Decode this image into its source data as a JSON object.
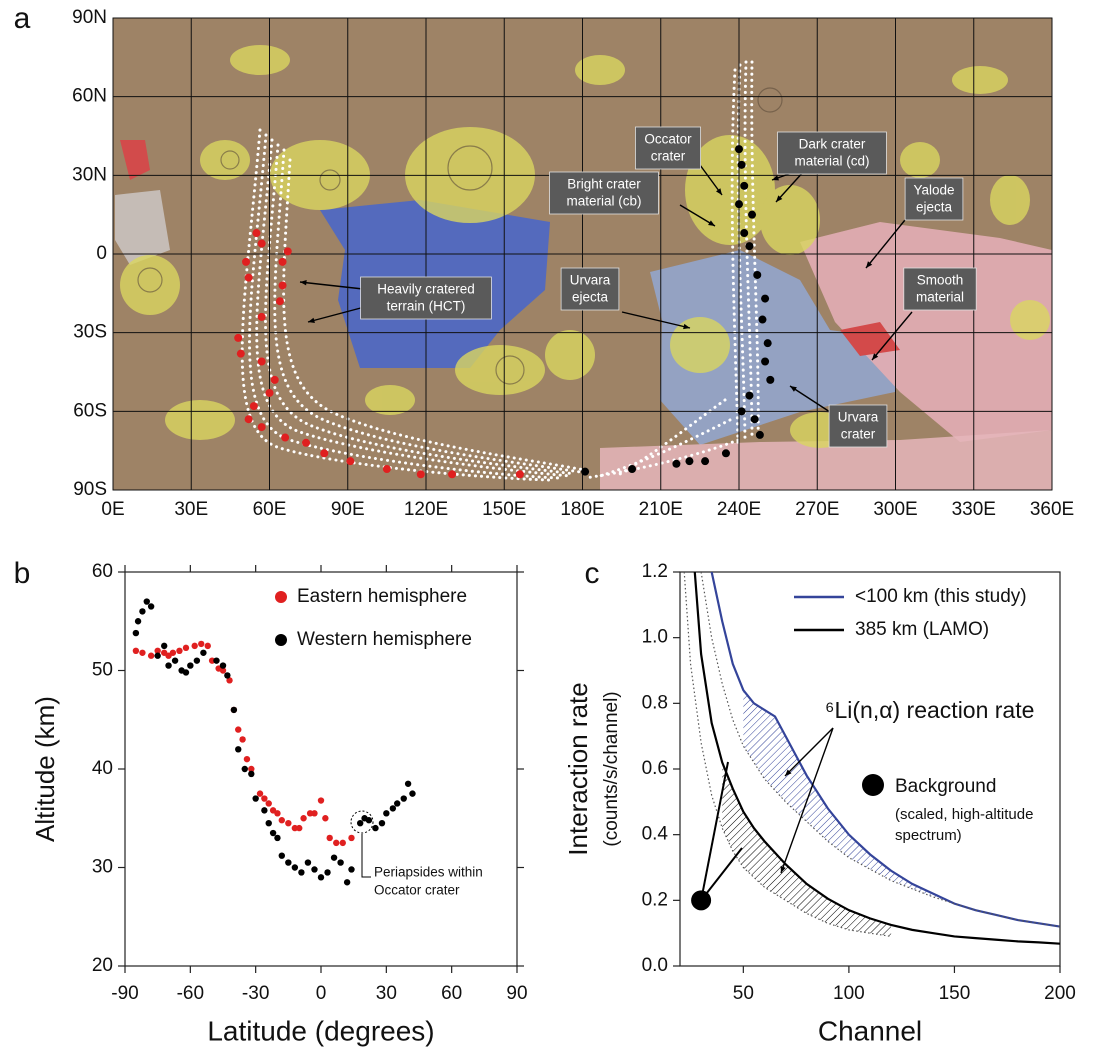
{
  "chart_data": [
    {
      "type": "scatter",
      "label": "a",
      "xlim": [
        0,
        360
      ],
      "ylim": [
        -90,
        90
      ],
      "xticks": [
        {
          "value": 0,
          "label": "0E"
        },
        {
          "value": 30,
          "label": "30E"
        },
        {
          "value": 60,
          "label": "60E"
        },
        {
          "value": 90,
          "label": "90E"
        },
        {
          "value": 120,
          "label": "120E"
        },
        {
          "value": 150,
          "label": "150E"
        },
        {
          "value": 180,
          "label": "180E"
        },
        {
          "value": 210,
          "label": "210E"
        },
        {
          "value": 240,
          "label": "240E"
        },
        {
          "value": 270,
          "label": "270E"
        },
        {
          "value": 300,
          "label": "300E"
        },
        {
          "value": 330,
          "label": "330E"
        },
        {
          "value": 360,
          "label": "360E"
        }
      ],
      "yticks": [
        {
          "value": 90,
          "label": "90N"
        },
        {
          "value": 60,
          "label": "60N"
        },
        {
          "value": 30,
          "label": "30N"
        },
        0,
        {
          "value": -30,
          "label": "30S"
        },
        {
          "value": -60,
          "label": "60S"
        },
        {
          "value": -90,
          "label": "90S"
        }
      ],
      "grid": true,
      "series": [
        {
          "color": "#e02020",
          "x": [
            55,
            57,
            67,
            65,
            51,
            52,
            65,
            64,
            57,
            48,
            49,
            57,
            62,
            60,
            54,
            52,
            57,
            66,
            74,
            81,
            91,
            105,
            118,
            130,
            156
          ],
          "values": [
            8,
            4,
            1,
            -3,
            -3,
            -9,
            -12,
            -18,
            -24,
            -32,
            -38,
            -41,
            -48,
            -53,
            -58,
            -63,
            -66,
            -70,
            -72,
            -76,
            -79,
            -82,
            -84,
            -84,
            -84
          ]
        },
        {
          "color": "#000000",
          "x": [
            240,
            241,
            242,
            240,
            245,
            242,
            244,
            247,
            250,
            249,
            251,
            250,
            252,
            244,
            241,
            246,
            248,
            235,
            227,
            221,
            216,
            199,
            181
          ],
          "values": [
            40,
            34,
            26,
            19,
            15,
            8,
            3,
            -8,
            -17,
            -25,
            -34,
            -41,
            -48,
            -54,
            -60,
            -63,
            -69,
            -76,
            -79,
            -79,
            -80,
            -82,
            -83
          ]
        }
      ],
      "annotations": [
        {
          "lines": [
            "Occator",
            "crater"
          ]
        },
        {
          "lines": [
            "Dark crater",
            "material (cd)"
          ]
        },
        {
          "lines": [
            "Bright crater",
            "material (cb)"
          ]
        },
        {
          "lines": [
            "Yalode",
            "ejecta"
          ]
        },
        {
          "lines": [
            "Heavily cratered",
            "terrain (HCT)"
          ]
        },
        {
          "lines": [
            "Urvara",
            "ejecta"
          ]
        },
        {
          "lines": [
            "Smooth",
            "material"
          ]
        },
        {
          "lines": [
            "Urvara",
            "crater"
          ]
        }
      ]
    },
    {
      "type": "scatter",
      "label": "b",
      "xlabel": "Latitude (degrees)",
      "ylabel": [
        "Altitude (km)"
      ],
      "xlim": [
        -90,
        90
      ],
      "ylim": [
        20,
        60
      ],
      "xticks": [
        -90,
        -60,
        -30,
        0,
        30,
        60,
        90
      ],
      "yticks": [
        20,
        30,
        40,
        50,
        60
      ],
      "legend": "upper right",
      "series": [
        {
          "name": "Eastern hemisphere",
          "color": "#e02020",
          "x": [
            -85,
            -82,
            -78,
            -75,
            -72,
            -70,
            -68,
            -65,
            -62,
            -58,
            -55,
            -52,
            -50,
            -47,
            -45,
            -42,
            -40,
            -38,
            -36,
            -34,
            -32,
            -28,
            -26,
            -24,
            -22,
            -20,
            -18,
            -15,
            -12,
            -10,
            -8,
            -5,
            -3,
            0,
            2,
            4,
            7,
            10,
            14
          ],
          "values": [
            52,
            51.8,
            51.5,
            52,
            51.8,
            51.5,
            51.8,
            52,
            52.3,
            52.5,
            52.7,
            52.5,
            51,
            50.2,
            50,
            49,
            46,
            44,
            43,
            41,
            40,
            37.5,
            37,
            36.5,
            35.8,
            35.5,
            34.8,
            34.5,
            34,
            34,
            35,
            35.5,
            35.5,
            36.8,
            35,
            33,
            32.5,
            32.5,
            33
          ]
        },
        {
          "name": "Western hemisphere",
          "color": "#000000",
          "x": [
            -85,
            -84,
            -82,
            -80,
            -78,
            -75,
            -72,
            -70,
            -67,
            -64,
            -62,
            -60,
            -57,
            -54,
            -48,
            -45,
            -43,
            -40,
            -38,
            -35,
            -32,
            -30,
            -26,
            -24,
            -22,
            -20,
            -18,
            -15,
            -12,
            -9,
            -6,
            -3,
            0,
            3,
            6,
            9,
            12,
            14,
            18,
            20,
            22,
            25,
            28,
            30,
            33,
            35,
            38,
            40,
            42
          ],
          "values": [
            53.8,
            55,
            56,
            57,
            56.5,
            51.5,
            52.5,
            50.5,
            51,
            50,
            49.8,
            50.5,
            51,
            51.8,
            51,
            50.5,
            49.5,
            46,
            42,
            40,
            39.5,
            37,
            35.8,
            34.5,
            33.5,
            33,
            31.2,
            30.5,
            30,
            29.5,
            30.5,
            29.8,
            29,
            29.5,
            31,
            30.5,
            28.5,
            29.8,
            34.5,
            35,
            34.8,
            34,
            34.5,
            35.5,
            36,
            36.5,
            37,
            38.5,
            37.5
          ]
        }
      ],
      "annotations": [
        {
          "lines": [
            "Periapsides within",
            "Occator crater"
          ]
        }
      ]
    },
    {
      "type": "line",
      "label": "c",
      "xlabel": "Channel",
      "ylabel": [
        "Interaction rate",
        "(counts/s/channel)"
      ],
      "xlim": [
        20,
        200
      ],
      "ylim": [
        0,
        1.2
      ],
      "xticks": [
        50,
        100,
        150,
        200
      ],
      "yticks": [
        {
          "value": 0,
          "label": "0.0"
        },
        0.2,
        0.4,
        0.6,
        0.8,
        {
          "value": 1,
          "label": "1.0"
        },
        1.2
      ],
      "legend": "upper right",
      "series": [
        {
          "name": "<100 km (this study)",
          "color": "#34449a",
          "x": [
            35,
            40,
            45,
            50,
            55,
            60,
            65,
            70,
            80,
            90,
            100,
            110,
            120,
            130,
            140,
            150,
            160,
            170,
            180,
            190,
            200
          ],
          "values": [
            1.2,
            1.05,
            0.92,
            0.84,
            0.8,
            0.78,
            0.76,
            0.7,
            0.58,
            0.48,
            0.4,
            0.34,
            0.29,
            0.25,
            0.22,
            0.19,
            0.17,
            0.155,
            0.14,
            0.13,
            0.12
          ]
        },
        {
          "name": "385 km (LAMO)",
          "color": "#000000",
          "x": [
            27,
            30,
            35,
            40,
            45,
            50,
            55,
            60,
            70,
            80,
            90,
            100,
            110,
            120,
            130,
            140,
            150,
            160,
            170,
            180,
            190,
            200
          ],
          "values": [
            1.2,
            0.95,
            0.74,
            0.62,
            0.54,
            0.47,
            0.42,
            0.38,
            0.31,
            0.25,
            0.205,
            0.17,
            0.145,
            0.125,
            0.11,
            0.1,
            0.09,
            0.085,
            0.08,
            0.075,
            0.072,
            0.068
          ]
        },
        {
          "color": "#555555",
          "style": "dotted",
          "x": [
            30,
            35,
            40,
            45,
            50,
            60,
            70,
            80,
            90,
            100,
            120,
            140,
            160,
            180,
            200
          ],
          "values": [
            1.2,
            1.0,
            0.86,
            0.75,
            0.67,
            0.57,
            0.5,
            0.44,
            0.38,
            0.33,
            0.26,
            0.21,
            0.17,
            0.14,
            0.12
          ]
        },
        {
          "color": "#555555",
          "style": "dotted",
          "x": [
            22,
            25,
            30,
            35,
            40,
            45,
            50,
            60,
            70,
            80,
            90,
            100,
            110,
            120
          ],
          "values": [
            1.2,
            0.92,
            0.68,
            0.52,
            0.42,
            0.35,
            0.3,
            0.24,
            0.2,
            0.16,
            0.13,
            0.11,
            0.1,
            0.09
          ]
        }
      ],
      "hatch": [
        {
          "series": [
            0,
            2
          ],
          "xrange": [
            50,
            150
          ],
          "color": "#34449a"
        },
        {
          "series": [
            1,
            3
          ],
          "xrange": [
            40,
            120
          ],
          "color": "#000000"
        }
      ],
      "points": [
        {
          "name": "Background",
          "lines": [
            "(scaled, high-altitude",
            "spectrum)"
          ],
          "x": 30,
          "y": 0.2
        }
      ],
      "annotations": [
        {
          "lines": [
            "⁶Li(n,α) reaction rate"
          ]
        }
      ]
    }
  ]
}
